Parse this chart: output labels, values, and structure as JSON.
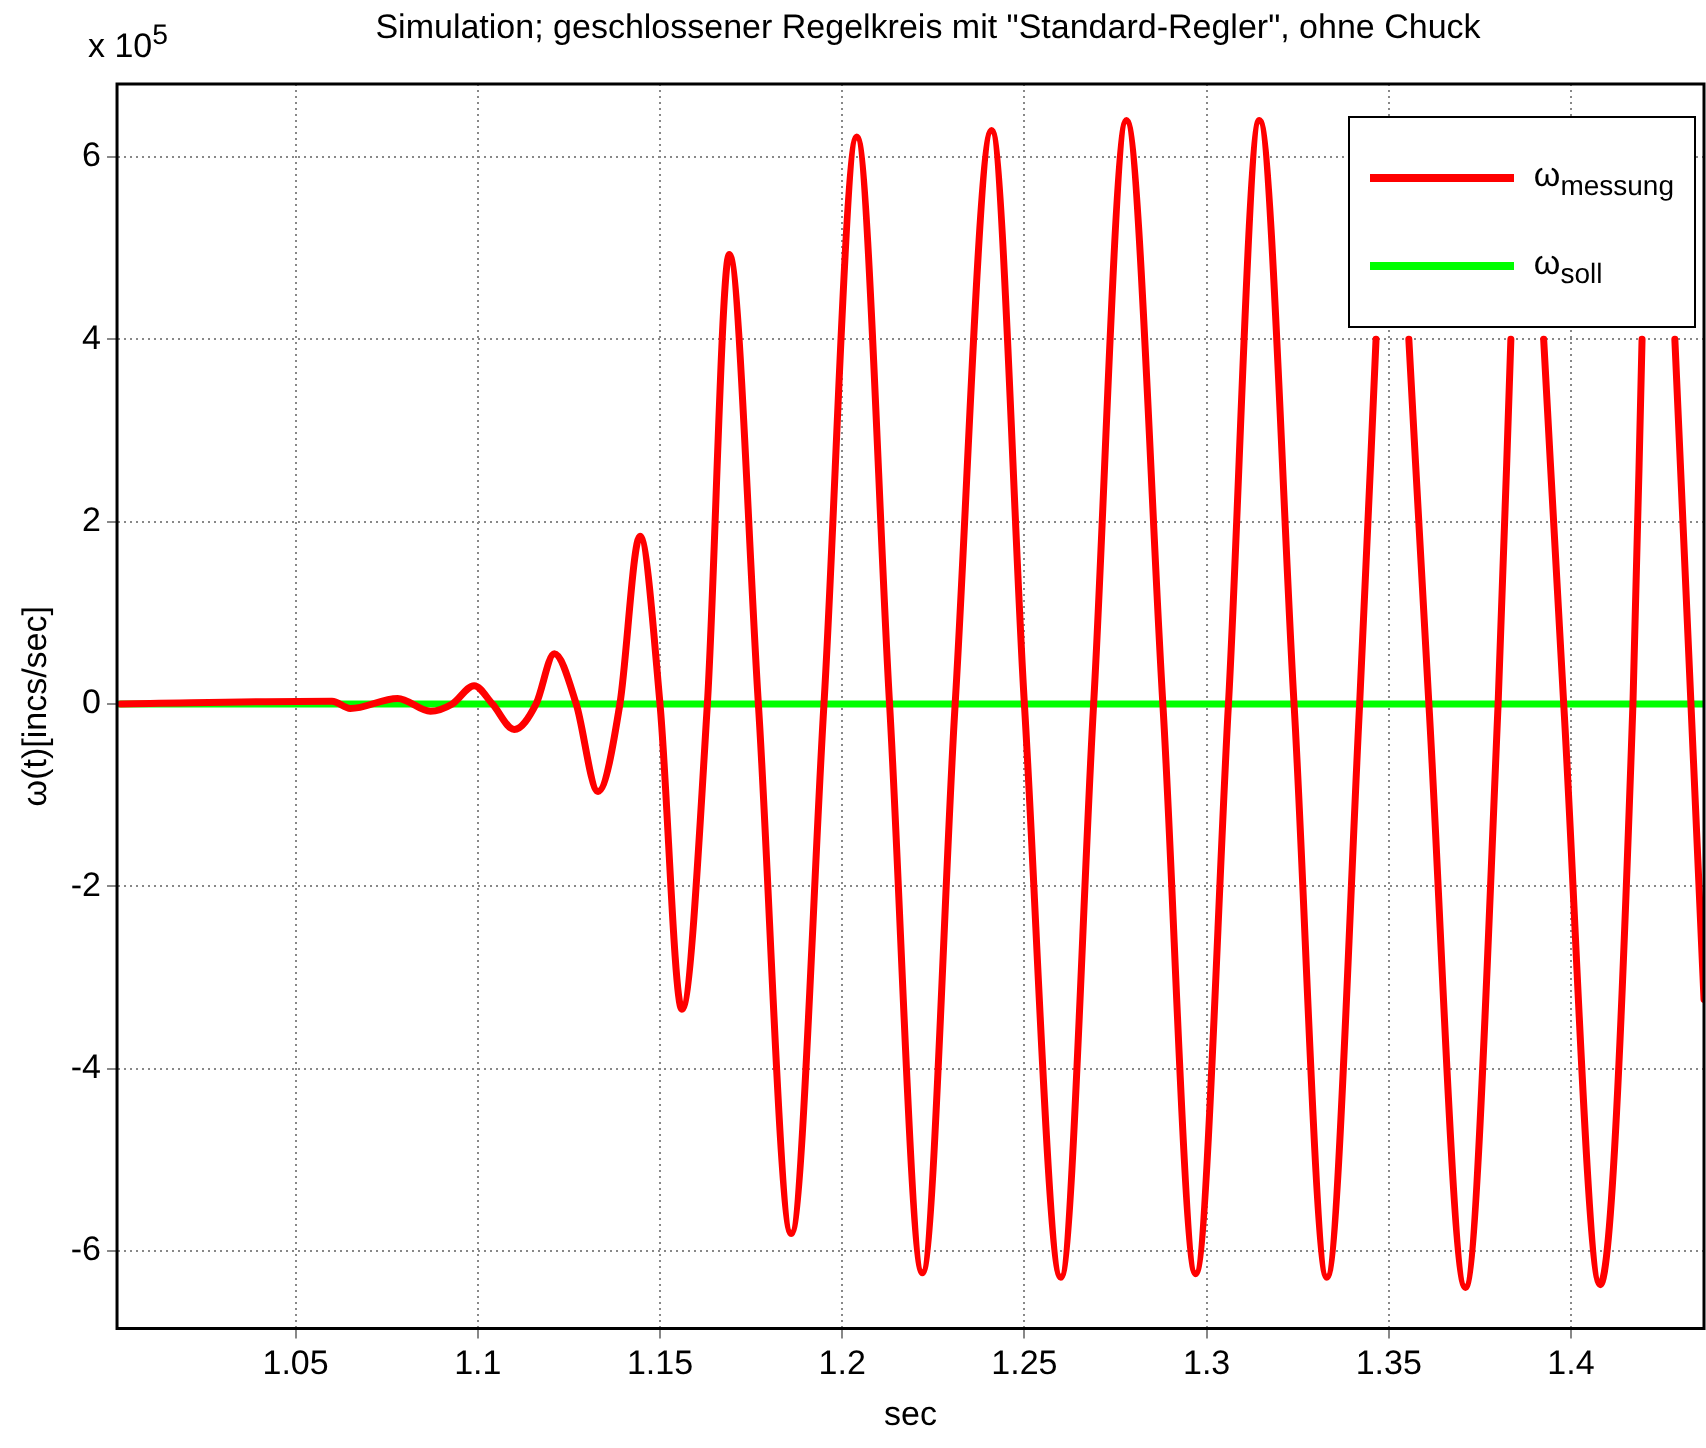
{
  "chart_data": {
    "type": "line",
    "title": "Simulation; geschlossener Regelkreis mit \"Standard-Regler\", ohne Chuck",
    "xlabel": "sec",
    "ylabel": "ω(t)[incs/sec]",
    "annotations": [
      "x 10$^{5}$"
    ],
    "xlim": [
      1.001,
      1.4365
    ],
    "xticks": [
      1.05,
      1.1,
      1.15,
      1.2,
      1.25,
      1.3,
      1.35,
      1.4
    ],
    "ylim": [
      -6.85,
      6.8
    ],
    "yticks": [
      -6,
      -4,
      -2,
      0,
      2,
      4,
      6
    ],
    "grid": true,
    "legend": "top right",
    "marker": "none",
    "line_style": "solid",
    "series": [
      {
        "name": "ω$_{messung}$",
        "color": "#ff0000",
        "x": [
          1.002,
          1.06,
          1.065,
          1.078,
          1.087,
          1.093,
          1.099,
          1.104,
          1.11,
          1.116,
          1.121,
          1.127,
          1.133,
          1.139,
          1.1445,
          1.15,
          1.156,
          1.163,
          1.169,
          1.177,
          1.186,
          1.195,
          1.204,
          1.213,
          1.222,
          1.231,
          1.241,
          1.25,
          1.26,
          1.269,
          1.278,
          1.288,
          1.297,
          1.306,
          1.3145,
          1.324,
          1.333,
          1.342,
          1.3465,
          1.351,
          1.3555,
          1.361,
          1.371,
          1.38,
          1.3835,
          1.388,
          1.3925,
          1.398,
          1.408,
          1.417,
          1.4195,
          1.424,
          1.4285,
          1.4365
        ],
        "values": [
          0,
          0.03,
          -0.05,
          0.06,
          -0.08,
          0,
          0.2,
          0,
          -0.28,
          0,
          0.55,
          0,
          -0.96,
          0,
          1.84,
          0,
          -3.35,
          0,
          4.93,
          0,
          -5.81,
          0,
          6.22,
          0,
          -6.24,
          0,
          6.29,
          0,
          -6.29,
          0,
          6.4,
          0,
          -6.25,
          0,
          6.4,
          0,
          -6.29,
          0,
          4,
          null,
          4,
          0,
          -6.4,
          0,
          4,
          null,
          4,
          0,
          -6.37,
          0,
          4,
          null,
          4,
          -3.24
        ]
      },
      {
        "name": "ω$_{soll}$",
        "color": "#00ff00",
        "x": [
          1.001,
          1.4365
        ],
        "values": [
          0,
          0
        ]
      }
    ]
  }
}
